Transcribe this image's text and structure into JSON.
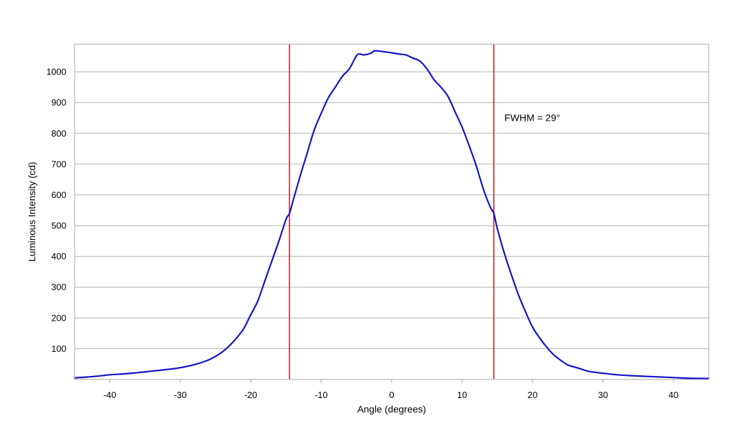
{
  "chart_data": {
    "type": "line",
    "xlabel": "Angle (degrees)",
    "ylabel": "Luminous Intensity (cd)",
    "xlim": [
      -45,
      45
    ],
    "ylim": [
      0,
      1090
    ],
    "xticks": [
      -40,
      -30,
      -20,
      -10,
      0,
      10,
      20,
      30,
      40
    ],
    "yticks": [
      100,
      200,
      300,
      400,
      500,
      600,
      700,
      800,
      900,
      1000
    ],
    "grid": "horizontal",
    "series": [
      {
        "color": "#1010c8",
        "x": [
          -45,
          -42,
          -40,
          -38,
          -36,
          -34,
          -32,
          -30,
          -28,
          -26,
          -25,
          -24,
          -23,
          -22,
          -21,
          -20,
          -19,
          -18,
          -17,
          -16,
          -15,
          -14.5,
          -14,
          -13,
          -12,
          -11,
          -10,
          -9,
          -8,
          -7,
          -6,
          -5,
          -4.5,
          -4,
          -3,
          -2.5,
          -2,
          -1,
          0,
          1,
          2,
          3,
          4,
          5,
          6,
          7,
          8,
          9,
          10,
          11,
          12,
          13,
          14,
          14.5,
          15,
          16,
          17,
          18,
          19,
          20,
          21,
          22,
          23,
          24,
          25,
          26,
          27,
          28,
          30,
          32,
          34,
          36,
          38,
          40,
          42,
          45
        ],
        "y": [
          5,
          10,
          15,
          18,
          22,
          27,
          32,
          38,
          48,
          63,
          75,
          90,
          110,
          135,
          165,
          210,
          255,
          320,
          385,
          450,
          520,
          540,
          580,
          660,
          735,
          810,
          865,
          915,
          950,
          985,
          1010,
          1052,
          1058,
          1055,
          1060,
          1068,
          1068,
          1065,
          1062,
          1058,
          1055,
          1045,
          1035,
          1010,
          975,
          950,
          920,
          870,
          820,
          760,
          695,
          620,
          560,
          540,
          490,
          410,
          340,
          275,
          220,
          170,
          135,
          105,
          80,
          62,
          47,
          40,
          33,
          26,
          20,
          15,
          12,
          10,
          8,
          6,
          4,
          3
        ]
      }
    ],
    "vlines": [
      {
        "x": -14.5,
        "color": "#cc1f1f"
      },
      {
        "x": 14.5,
        "color": "#cc1f1f"
      }
    ],
    "annotations": [
      {
        "text": "FWHM = 29°",
        "x": 16,
        "y": 840
      }
    ]
  }
}
